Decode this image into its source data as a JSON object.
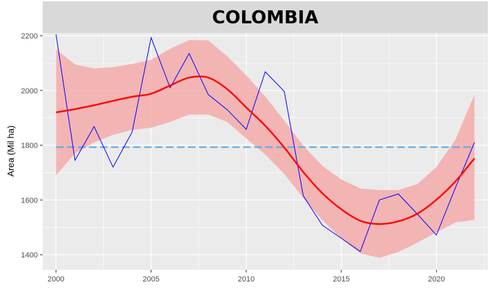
{
  "chart_data": {
    "type": "line",
    "title": "COLOMBIA",
    "xlabel": "",
    "ylabel": "Area (Mil ha)",
    "xlim": [
      1999.3,
      2022.7
    ],
    "ylim": [
      1345,
      2210
    ],
    "x_ticks": [
      2000,
      2005,
      2010,
      2015,
      2020
    ],
    "y_ticks": [
      1400,
      1600,
      1800,
      2000,
      2200
    ],
    "grid": true,
    "background_color": "#EBEBEB",
    "strip_color": "#D9D9D9",
    "series": [
      {
        "kind": "observed",
        "color": "#0000FF",
        "x": [
          2000,
          2001,
          2002,
          2003,
          2004,
          2005,
          2006,
          2007,
          2008,
          2009,
          2010,
          2011,
          2012,
          2013,
          2014,
          2015,
          2016,
          2017,
          2018,
          2019,
          2020,
          2021,
          2022
        ],
        "y": [
          2205,
          1745,
          1868,
          1720,
          1848,
          2193,
          2010,
          2135,
          1985,
          1930,
          1858,
          2068,
          1997,
          1615,
          1508,
          1460,
          1412,
          1600,
          1622,
          1548,
          1472,
          1645,
          1810
        ]
      },
      {
        "kind": "smooth",
        "color": "#FF0000",
        "x": [
          2000,
          2001,
          2002,
          2003,
          2004,
          2005,
          2006,
          2007,
          2008,
          2009,
          2010,
          2011,
          2012,
          2013,
          2014,
          2015,
          2016,
          2017,
          2018,
          2019,
          2020,
          2021,
          2022
        ],
        "y": [
          1920,
          1932,
          1946,
          1962,
          1977,
          1988,
          2018,
          2047,
          2047,
          2005,
          1938,
          1871,
          1792,
          1702,
          1625,
          1566,
          1524,
          1512,
          1522,
          1550,
          1601,
          1668,
          1752
        ]
      },
      {
        "kind": "mean",
        "color": "#56A8E8",
        "y": 1793
      }
    ],
    "confidence_band": {
      "color": "#F4AAAA",
      "x": [
        2000,
        2001,
        2002,
        2003,
        2004,
        2005,
        2006,
        2007,
        2008,
        2009,
        2010,
        2011,
        2012,
        2013,
        2014,
        2015,
        2016,
        2017,
        2018,
        2019,
        2020,
        2021,
        2022
      ],
      "lower": [
        1690,
        1770,
        1810,
        1838,
        1856,
        1864,
        1885,
        1912,
        1912,
        1885,
        1825,
        1766,
        1695,
        1607,
        1527,
        1458,
        1405,
        1389,
        1410,
        1444,
        1482,
        1518,
        1527
      ],
      "upper": [
        2150,
        2095,
        2080,
        2085,
        2097,
        2112,
        2152,
        2184,
        2183,
        2125,
        2055,
        1978,
        1890,
        1798,
        1725,
        1675,
        1642,
        1636,
        1636,
        1658,
        1720,
        1820,
        1985
      ]
    }
  }
}
